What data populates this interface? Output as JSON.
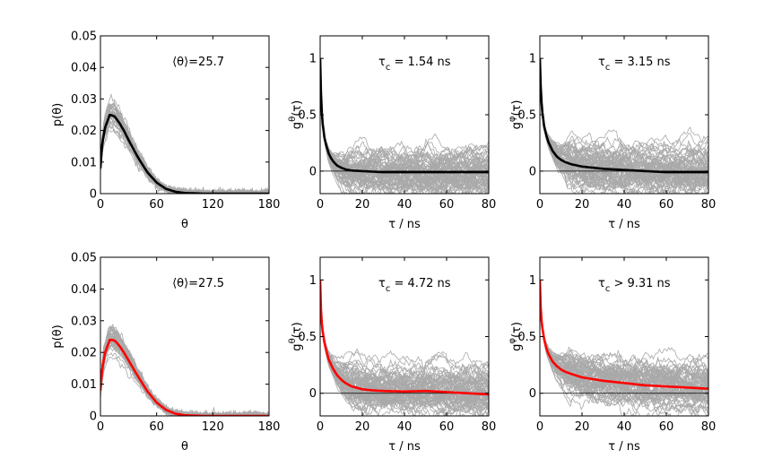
{
  "chart_data": [
    {
      "type": "line",
      "panel": "top-left",
      "ylabel": "p(θ)",
      "xlabel": "θ",
      "annotation": "⟨θ⟩=25.7",
      "xlim": [
        0,
        180
      ],
      "ylim": [
        0,
        0.05
      ],
      "xticks": [
        "0",
        "60",
        "120",
        "180"
      ],
      "yticks": [
        "0",
        "0.01",
        "0.02",
        "0.03",
        "0.04",
        "0.05"
      ],
      "mean_color": "#000000",
      "series": [
        {
          "name": "mean",
          "x": [
            0,
            2,
            5,
            10,
            15,
            20,
            25,
            30,
            40,
            50,
            60,
            70,
            80,
            90,
            100,
            110,
            120,
            140,
            160,
            180
          ],
          "y": [
            0.008,
            0.016,
            0.021,
            0.025,
            0.0245,
            0.0225,
            0.02,
            0.017,
            0.0115,
            0.0068,
            0.0035,
            0.0015,
            0.0006,
            0.0002,
            0.0001,
            0,
            0,
            0,
            0,
            0
          ]
        }
      ]
    },
    {
      "type": "line",
      "panel": "top-middle",
      "ylabel": "g^θ(τ)",
      "xlabel": "τ / ns",
      "annotation": "τ_c = 1.54 ns",
      "xlim": [
        0,
        80
      ],
      "ylim": [
        -0.2,
        1.2
      ],
      "xticks": [
        "0",
        "20",
        "40",
        "60",
        "80"
      ],
      "yticks": [
        "0",
        "0.5",
        "1"
      ],
      "mean_color": "#000000",
      "series": [
        {
          "name": "mean",
          "x": [
            0,
            0.5,
            1,
            2,
            3,
            4,
            5,
            6,
            8,
            10,
            12,
            15,
            20,
            30,
            40,
            50,
            60,
            70,
            80
          ],
          "y": [
            1,
            0.62,
            0.45,
            0.3,
            0.22,
            0.16,
            0.12,
            0.09,
            0.05,
            0.03,
            0.015,
            0.005,
            0,
            -0.01,
            -0.01,
            -0.01,
            -0.01,
            -0.01,
            -0.01
          ]
        }
      ]
    },
    {
      "type": "line",
      "panel": "top-right",
      "ylabel": "g^φ(τ)",
      "xlabel": "τ / ns",
      "annotation": "τ_c = 3.15 ns",
      "xlim": [
        0,
        80
      ],
      "ylim": [
        -0.2,
        1.2
      ],
      "xticks": [
        "0",
        "20",
        "40",
        "60",
        "80"
      ],
      "yticks": [
        "0",
        "0.5",
        "1"
      ],
      "mean_color": "#000000",
      "series": [
        {
          "name": "mean",
          "x": [
            0,
            0.5,
            1,
            2,
            3,
            4,
            6,
            8,
            10,
            12,
            15,
            20,
            30,
            40,
            50,
            60,
            70,
            80
          ],
          "y": [
            1,
            0.7,
            0.55,
            0.4,
            0.32,
            0.26,
            0.18,
            0.13,
            0.1,
            0.08,
            0.06,
            0.04,
            0.02,
            0.01,
            0,
            -0.01,
            -0.01,
            -0.01
          ]
        }
      ]
    },
    {
      "type": "line",
      "panel": "bottom-left",
      "ylabel": "p(θ)",
      "xlabel": "θ",
      "annotation": "⟨θ⟩=27.5",
      "xlim": [
        0,
        180
      ],
      "ylim": [
        0,
        0.05
      ],
      "xticks": [
        "0",
        "60",
        "120",
        "180"
      ],
      "yticks": [
        "0",
        "0.01",
        "0.02",
        "0.03",
        "0.04",
        "0.05"
      ],
      "mean_color": "#ff0000",
      "series": [
        {
          "name": "mean",
          "x": [
            0,
            2,
            5,
            10,
            15,
            20,
            25,
            30,
            40,
            50,
            60,
            70,
            80,
            90,
            100,
            110,
            120,
            140,
            160,
            180
          ],
          "y": [
            0.008,
            0.015,
            0.02,
            0.024,
            0.0238,
            0.0222,
            0.02,
            0.0175,
            0.0125,
            0.0078,
            0.0042,
            0.0019,
            0.0007,
            0.0002,
            0.0001,
            0,
            0,
            0,
            0,
            0
          ]
        }
      ]
    },
    {
      "type": "line",
      "panel": "bottom-middle",
      "ylabel": "g^θ(τ)",
      "xlabel": "τ / ns",
      "annotation": "τ_c = 4.72 ns",
      "xlim": [
        0,
        80
      ],
      "ylim": [
        -0.2,
        1.2
      ],
      "xticks": [
        "0",
        "20",
        "40",
        "60",
        "80"
      ],
      "yticks": [
        "0",
        "0.5",
        "1"
      ],
      "mean_color": "#ff0000",
      "series": [
        {
          "name": "mean",
          "x": [
            0,
            0.5,
            1,
            2,
            3,
            4,
            6,
            8,
            10,
            12,
            15,
            20,
            25,
            30,
            40,
            50,
            60,
            70,
            80
          ],
          "y": [
            1,
            0.68,
            0.57,
            0.45,
            0.37,
            0.3,
            0.22,
            0.16,
            0.12,
            0.09,
            0.06,
            0.035,
            0.025,
            0.02,
            0.015,
            0.02,
            0.01,
            0,
            -0.01
          ]
        }
      ]
    },
    {
      "type": "line",
      "panel": "bottom-right",
      "ylabel": "g^φ(τ)",
      "xlabel": "τ / ns",
      "annotation": "τ_c > 9.31 ns",
      "xlim": [
        0,
        80
      ],
      "ylim": [
        -0.2,
        1.2
      ],
      "xticks": [
        "0",
        "20",
        "40",
        "60",
        "80"
      ],
      "yticks": [
        "0",
        "0.5",
        "1"
      ],
      "mean_color": "#ff0000",
      "series": [
        {
          "name": "mean",
          "x": [
            0,
            0.5,
            1,
            2,
            3,
            4,
            6,
            8,
            10,
            12,
            15,
            20,
            30,
            40,
            50,
            60,
            70,
            80
          ],
          "y": [
            1,
            0.7,
            0.6,
            0.48,
            0.4,
            0.35,
            0.28,
            0.24,
            0.21,
            0.19,
            0.17,
            0.14,
            0.11,
            0.09,
            0.07,
            0.06,
            0.05,
            0.04
          ]
        }
      ]
    }
  ]
}
